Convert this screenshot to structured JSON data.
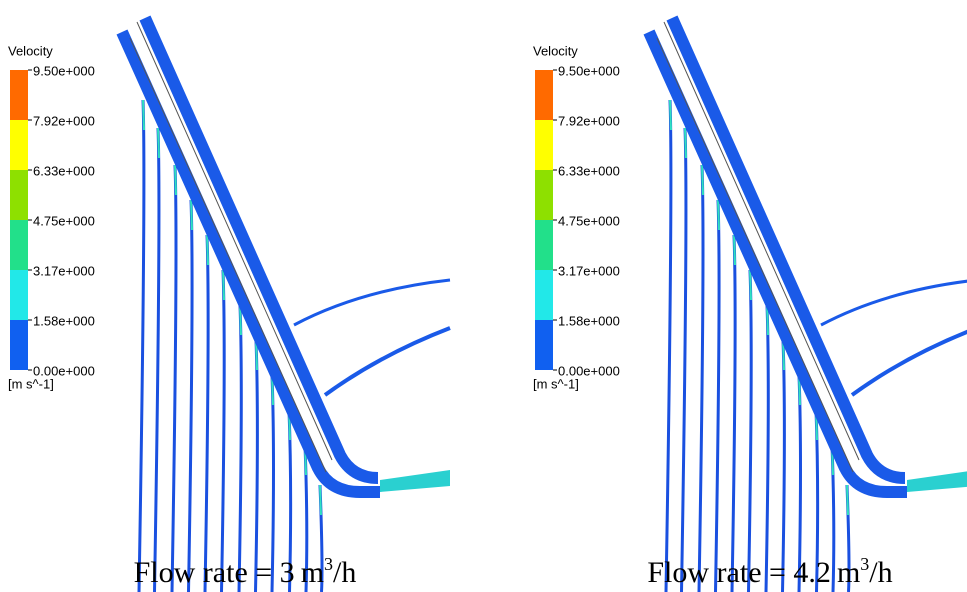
{
  "panels": [
    {
      "legend": {
        "title": "Velocity",
        "ticks": [
          "9.50e+000",
          "7.92e+000",
          "6.33e+000",
          "4.75e+000",
          "3.17e+000",
          "1.58e+000",
          "0.00e+000"
        ],
        "unit": "[m s^-1]"
      },
      "caption": {
        "text": "Flow rate = 3",
        "unit": "m",
        "exponent": "3",
        "suffix": "/h"
      }
    },
    {
      "legend": {
        "title": "Velocity",
        "ticks": [
          "9.50e+000",
          "7.92e+000",
          "6.33e+000",
          "4.75e+000",
          "3.17e+000",
          "1.58e+000",
          "0.00e+000"
        ],
        "unit": "[m s^-1]"
      },
      "caption": {
        "text": "Flow rate = 4.2",
        "unit": "m",
        "exponent": "3",
        "suffix": "/h"
      }
    }
  ]
}
